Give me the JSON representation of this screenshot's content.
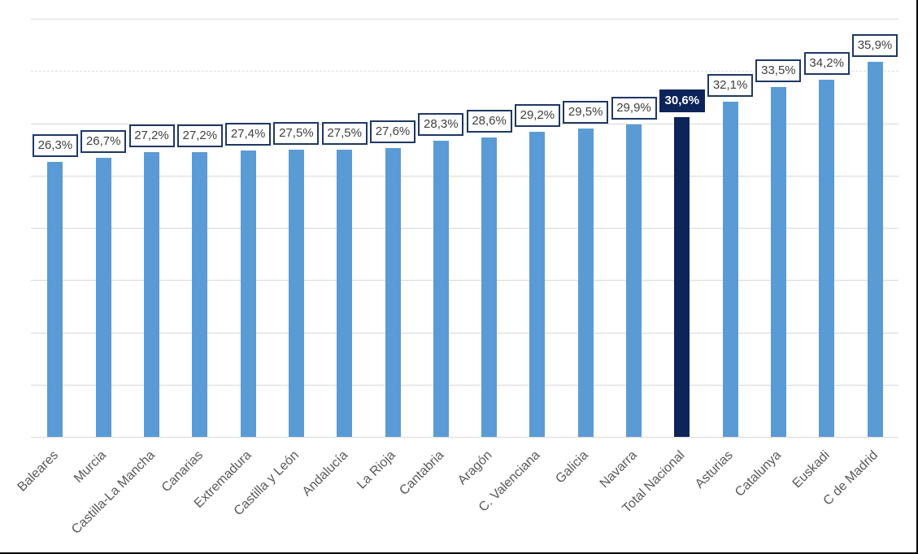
{
  "chart_data": {
    "type": "bar",
    "title": "",
    "xlabel": "",
    "ylabel": "",
    "categories": [
      "Baleares",
      "Murcia",
      "Castilla-La Mancha",
      "Canarias",
      "Extremadura",
      "Castilla y León",
      "Andalucía",
      "La Rioja",
      "Cantabria",
      "Aragón",
      "C. Valenciana",
      "Galicia",
      "Navarra",
      "Total Nacional",
      "Asturias",
      "Catalunya",
      "Euskadi",
      "C de Madrid"
    ],
    "values": [
      26.3,
      26.7,
      27.2,
      27.2,
      27.4,
      27.5,
      27.5,
      27.6,
      28.3,
      28.6,
      29.2,
      29.5,
      29.9,
      30.6,
      32.1,
      33.5,
      34.2,
      35.9
    ],
    "data_labels": [
      "26,3%",
      "26,7%",
      "27,2%",
      "27,2%",
      "27,4%",
      "27,5%",
      "27,5%",
      "27,6%",
      "28,3%",
      "28,6%",
      "29,2%",
      "29,5%",
      "29,9%",
      "30,6%",
      "32,1%",
      "33,5%",
      "34,2%",
      "35,9%"
    ],
    "highlight_category": "Total Nacional",
    "highlight_index": 13,
    "ylim": [
      0,
      40
    ],
    "gridline_step_pct": 5,
    "dashed_gridline_value_pct": 35,
    "grid": "on",
    "legend": "none",
    "colors": {
      "bar": "#5B9BD5",
      "highlight_bar": "#0C2459",
      "label_box_border": "#1F3864",
      "label_box_fill": "#FFFFFF",
      "label_text": "#404040",
      "highlight_label_fill": "#0C2459",
      "highlight_label_text": "#FFFFFF",
      "axis_label_text": "#595959",
      "gridline": "#D9D9D9",
      "chart_border": "#000000",
      "background": "#FFFFFF"
    }
  }
}
